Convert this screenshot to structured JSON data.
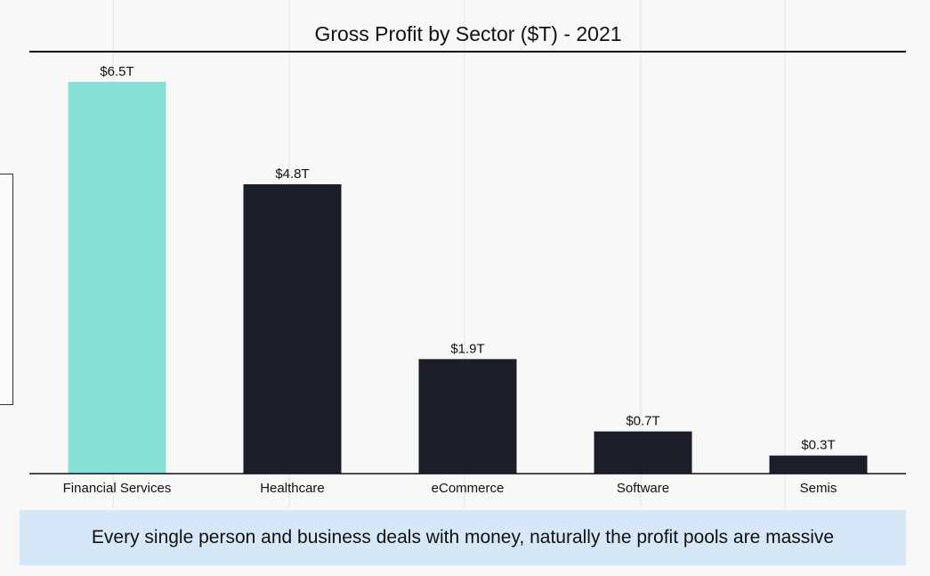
{
  "chart_data": {
    "type": "bar",
    "title": "Gross Profit by Sector ($T) - 2021",
    "categories": [
      "Financial Services",
      "Healthcare",
      "eCommerce",
      "Software",
      "Semis"
    ],
    "values": [
      6.5,
      4.8,
      1.9,
      0.7,
      0.3
    ],
    "data_labels": [
      "$6.5T",
      "$4.8T",
      "$1.9T",
      "$0.7T",
      "$0.3T"
    ],
    "highlight_index": 0,
    "ylim": [
      0,
      7.0
    ],
    "grid": "vertical",
    "colors": {
      "highlight": "#87dfd6",
      "bar": "#1b1d29",
      "grid": "#e2e2e2",
      "axis": "#111111"
    }
  },
  "caption": "Every single person and business deals with money, naturally the profit pools are massive"
}
